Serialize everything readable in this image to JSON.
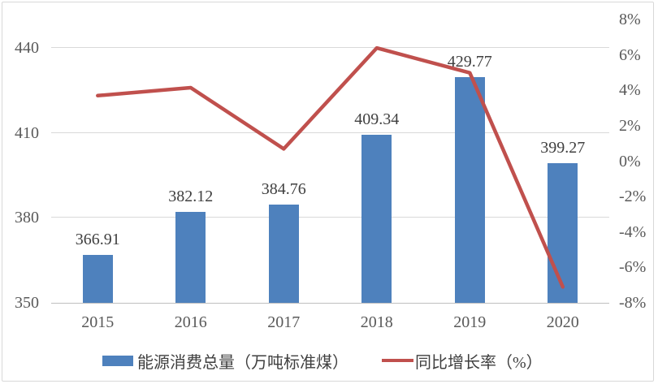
{
  "chart_data": {
    "type": "bar",
    "subtype": "bar+line dual axis",
    "categories": [
      "2015",
      "2016",
      "2017",
      "2018",
      "2019",
      "2020"
    ],
    "series": [
      {
        "name": "能源消费总量（万吨标准煤）",
        "type": "bar",
        "axis": "left",
        "values": [
          366.91,
          382.12,
          384.76,
          409.34,
          429.77,
          399.27
        ],
        "data_labels": [
          "366.91",
          "382.12",
          "384.76",
          "409.34",
          "429.77",
          "399.27"
        ],
        "color": "#4e81bd"
      },
      {
        "name": "同比增长率（%）",
        "type": "line",
        "axis": "right",
        "values": [
          3.7,
          4.15,
          0.69,
          6.39,
          4.99,
          -7.1
        ],
        "color": "#c0504d"
      }
    ],
    "left_axis": {
      "min": 350,
      "max": 450,
      "tick_values": [
        350,
        380,
        410,
        440
      ],
      "tick_labels": [
        "350",
        "380",
        "410",
        "440"
      ]
    },
    "right_axis": {
      "min": -8,
      "max": 8,
      "tick_values": [
        8,
        6,
        4,
        2,
        0,
        -2,
        -4,
        -6,
        -8
      ],
      "tick_labels": [
        "8%",
        "6%",
        "4%",
        "2%",
        "0%",
        "-2%",
        "-4%",
        "-6%",
        "-8%"
      ]
    },
    "title": "",
    "xlabel": "",
    "ylabel": "",
    "grid": true,
    "legend_position": "bottom"
  },
  "legend": {
    "items": [
      {
        "label": "能源消费总量（万吨标准煤）",
        "swatch": "rect",
        "color": "#4e81bd"
      },
      {
        "label": "同比增长率（%）",
        "swatch": "line",
        "color": "#c0504d"
      }
    ]
  },
  "colors": {
    "bar": "#4e81bd",
    "line": "#c0504d",
    "gridline": "#d9d9d9",
    "axis_line": "#bfbfbf",
    "tick_text": "#595959",
    "data_label_text": "#404040",
    "border": "#d8d8d8"
  }
}
